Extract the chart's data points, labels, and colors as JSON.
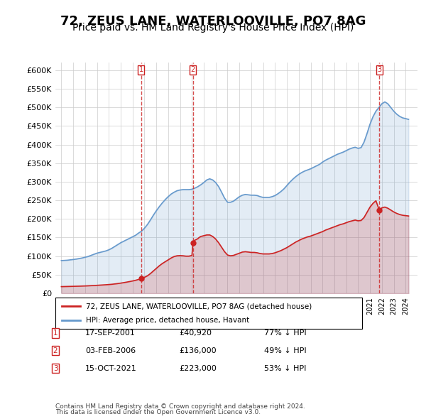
{
  "title": "72, ZEUS LANE, WATERLOOVILLE, PO7 8AG",
  "subtitle": "Price paid vs. HM Land Registry's House Price Index (HPI)",
  "title_fontsize": 13,
  "subtitle_fontsize": 10,
  "xlabel": "",
  "ylabel": "",
  "ylim": [
    0,
    620000
  ],
  "yticks": [
    0,
    50000,
    100000,
    150000,
    200000,
    250000,
    300000,
    350000,
    400000,
    450000,
    500000,
    550000,
    600000
  ],
  "ytick_labels": [
    "£0",
    "£50K",
    "£100K",
    "£150K",
    "£200K",
    "£250K",
    "£300K",
    "£350K",
    "£400K",
    "£450K",
    "£500K",
    "£550K",
    "£600K"
  ],
  "hpi_color": "#6699cc",
  "price_color": "#cc2222",
  "vline_color": "#cc2222",
  "background_color": "#ffffff",
  "grid_color": "#cccccc",
  "legend_label_price": "72, ZEUS LANE, WATERLOOVILLE, PO7 8AG (detached house)",
  "legend_label_hpi": "HPI: Average price, detached house, Havant",
  "transactions": [
    {
      "num": 1,
      "date": "17-SEP-2001",
      "price": 40920,
      "pct": "77%",
      "dir": "↓",
      "year": 2001.72
    },
    {
      "num": 2,
      "date": "03-FEB-2006",
      "price": 136000,
      "pct": "49%",
      "dir": "↓",
      "year": 2006.09
    },
    {
      "num": 3,
      "date": "15-OCT-2021",
      "price": 223000,
      "pct": "53%",
      "dir": "↓",
      "year": 2021.79
    }
  ],
  "footer1": "Contains HM Land Registry data © Crown copyright and database right 2024.",
  "footer2": "This data is licensed under the Open Government Licence v3.0.",
  "hpi_data": {
    "years": [
      1995.0,
      1995.25,
      1995.5,
      1995.75,
      1996.0,
      1996.25,
      1996.5,
      1996.75,
      1997.0,
      1997.25,
      1997.5,
      1997.75,
      1998.0,
      1998.25,
      1998.5,
      1998.75,
      1999.0,
      1999.25,
      1999.5,
      1999.75,
      2000.0,
      2000.25,
      2000.5,
      2000.75,
      2001.0,
      2001.25,
      2001.5,
      2001.75,
      2002.0,
      2002.25,
      2002.5,
      2002.75,
      2003.0,
      2003.25,
      2003.5,
      2003.75,
      2004.0,
      2004.25,
      2004.5,
      2004.75,
      2005.0,
      2005.25,
      2005.5,
      2005.75,
      2006.0,
      2006.25,
      2006.5,
      2006.75,
      2007.0,
      2007.25,
      2007.5,
      2007.75,
      2008.0,
      2008.25,
      2008.5,
      2008.75,
      2009.0,
      2009.25,
      2009.5,
      2009.75,
      2010.0,
      2010.25,
      2010.5,
      2010.75,
      2011.0,
      2011.25,
      2011.5,
      2011.75,
      2012.0,
      2012.25,
      2012.5,
      2012.75,
      2013.0,
      2013.25,
      2013.5,
      2013.75,
      2014.0,
      2014.25,
      2014.5,
      2014.75,
      2015.0,
      2015.25,
      2015.5,
      2015.75,
      2016.0,
      2016.25,
      2016.5,
      2016.75,
      2017.0,
      2017.25,
      2017.5,
      2017.75,
      2018.0,
      2018.25,
      2018.5,
      2018.75,
      2019.0,
      2019.25,
      2019.5,
      2019.75,
      2020.0,
      2020.25,
      2020.5,
      2020.75,
      2021.0,
      2021.25,
      2021.5,
      2021.75,
      2022.0,
      2022.25,
      2022.5,
      2022.75,
      2023.0,
      2023.25,
      2023.5,
      2023.75,
      2024.0,
      2024.25
    ],
    "values": [
      88000,
      88500,
      89000,
      90000,
      91000,
      92000,
      93500,
      95000,
      97000,
      99000,
      102000,
      105000,
      108000,
      110000,
      112000,
      114000,
      117000,
      121000,
      126000,
      131000,
      136000,
      140000,
      144000,
      148000,
      152000,
      156000,
      162000,
      167000,
      175000,
      185000,
      197000,
      210000,
      222000,
      233000,
      243000,
      252000,
      260000,
      267000,
      272000,
      276000,
      278000,
      279000,
      279000,
      279000,
      280000,
      283000,
      287000,
      292000,
      298000,
      305000,
      308000,
      305000,
      298000,
      287000,
      272000,
      256000,
      245000,
      245000,
      248000,
      254000,
      260000,
      264000,
      266000,
      265000,
      264000,
      264000,
      263000,
      260000,
      258000,
      258000,
      258000,
      260000,
      263000,
      268000,
      274000,
      281000,
      290000,
      299000,
      307000,
      314000,
      320000,
      325000,
      329000,
      332000,
      335000,
      339000,
      343000,
      347000,
      353000,
      358000,
      362000,
      366000,
      370000,
      374000,
      377000,
      380000,
      384000,
      388000,
      391000,
      393000,
      390000,
      392000,
      407000,
      430000,
      455000,
      475000,
      490000,
      500000,
      510000,
      515000,
      510000,
      500000,
      490000,
      482000,
      476000,
      472000,
      470000,
      468000
    ]
  },
  "price_data": {
    "years": [
      1995.0,
      1995.25,
      1995.5,
      1995.75,
      1996.0,
      1996.25,
      1996.5,
      1996.75,
      1997.0,
      1997.25,
      1997.5,
      1997.75,
      1998.0,
      1998.25,
      1998.5,
      1998.75,
      1999.0,
      1999.25,
      1999.5,
      1999.75,
      2000.0,
      2000.25,
      2000.5,
      2000.75,
      2001.0,
      2001.25,
      2001.5,
      2001.75,
      2001.9,
      2002.0,
      2002.25,
      2002.5,
      2002.75,
      2003.0,
      2003.25,
      2003.5,
      2003.75,
      2004.0,
      2004.25,
      2004.5,
      2004.75,
      2005.0,
      2005.25,
      2005.5,
      2005.75,
      2006.0,
      2006.09,
      2006.25,
      2006.5,
      2006.6,
      2006.75,
      2007.0,
      2007.25,
      2007.5,
      2007.75,
      2008.0,
      2008.25,
      2008.5,
      2008.75,
      2009.0,
      2009.25,
      2009.5,
      2009.75,
      2010.0,
      2010.25,
      2010.5,
      2010.75,
      2011.0,
      2011.25,
      2011.5,
      2011.75,
      2012.0,
      2012.25,
      2012.5,
      2012.75,
      2013.0,
      2013.25,
      2013.5,
      2013.75,
      2014.0,
      2014.25,
      2014.5,
      2014.75,
      2015.0,
      2015.25,
      2015.5,
      2015.75,
      2016.0,
      2016.25,
      2016.5,
      2016.75,
      2017.0,
      2017.25,
      2017.5,
      2017.75,
      2018.0,
      2018.25,
      2018.5,
      2018.75,
      2019.0,
      2019.25,
      2019.5,
      2019.75,
      2020.0,
      2020.25,
      2020.5,
      2020.75,
      2021.0,
      2021.25,
      2021.5,
      2021.79,
      2022.0,
      2022.25,
      2022.5,
      2022.75,
      2023.0,
      2023.25,
      2023.5,
      2023.75,
      2024.0,
      2024.25
    ],
    "values": [
      18000,
      18200,
      18400,
      18600,
      18800,
      19000,
      19200,
      19500,
      19800,
      20200,
      20600,
      21000,
      21500,
      22000,
      22500,
      23000,
      23600,
      24300,
      25200,
      26200,
      27400,
      28700,
      30100,
      31600,
      33200,
      35000,
      37200,
      39500,
      40920,
      43000,
      47000,
      53000,
      60000,
      67000,
      74000,
      80000,
      85000,
      90000,
      95000,
      99000,
      101000,
      101500,
      101000,
      100000,
      100000,
      102000,
      136000,
      143000,
      147000,
      150000,
      153000,
      155000,
      157000,
      157000,
      153000,
      146000,
      136000,
      124000,
      112000,
      103000,
      101000,
      102000,
      105000,
      108000,
      111000,
      112000,
      111000,
      110000,
      110000,
      109000,
      107000,
      106000,
      106000,
      106000,
      107000,
      109000,
      112000,
      115000,
      119000,
      123000,
      128000,
      133000,
      138000,
      142000,
      146000,
      149000,
      152000,
      154000,
      157000,
      160000,
      163000,
      166000,
      170000,
      173000,
      176000,
      179000,
      182000,
      185000,
      187000,
      190000,
      193000,
      195000,
      197000,
      195000,
      196000,
      204000,
      218000,
      232000,
      242000,
      249000,
      223000,
      230000,
      232000,
      229000,
      224000,
      219000,
      215000,
      212000,
      210000,
      209000,
      208000
    ]
  }
}
